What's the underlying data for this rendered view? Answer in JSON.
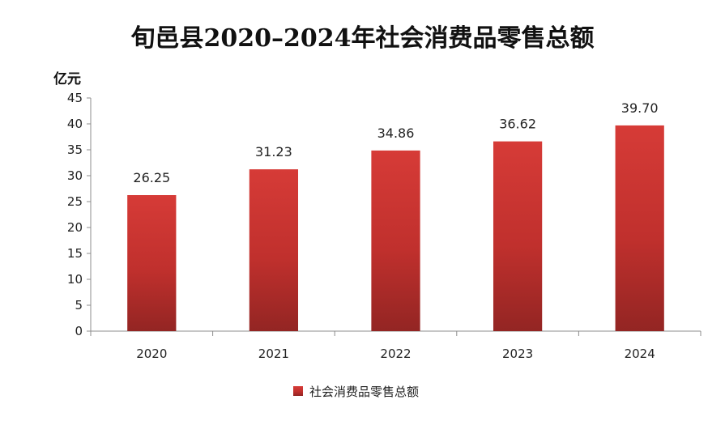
{
  "chart_data": {
    "type": "bar",
    "title": "旬邑县2020–2024年社会消费品零售总额",
    "y_unit": "亿元",
    "categories": [
      "2020",
      "2021",
      "2022",
      "2023",
      "2024"
    ],
    "series": [
      {
        "name": "社会消费品零售总额",
        "values": [
          26.25,
          31.23,
          34.86,
          36.62,
          39.7
        ],
        "color": "#c0302d"
      }
    ],
    "data_labels": [
      "26.25",
      "31.23",
      "34.86",
      "36.62",
      "39.70"
    ],
    "ylim": [
      0,
      45
    ],
    "yticks": [
      0,
      5,
      10,
      15,
      20,
      25,
      30,
      35,
      40,
      45
    ],
    "grid": false,
    "legend_position": "bottom"
  }
}
